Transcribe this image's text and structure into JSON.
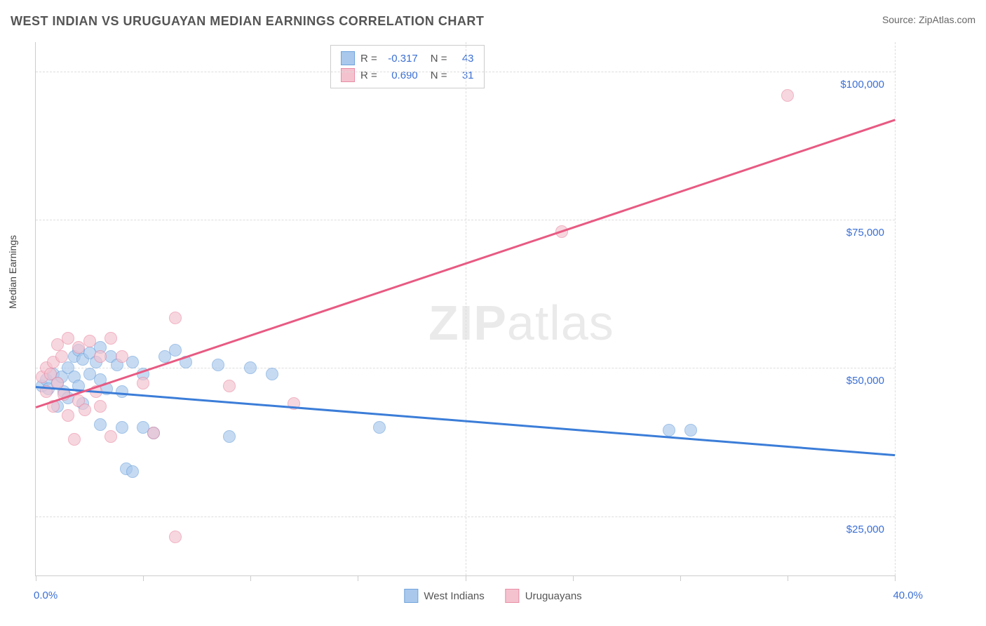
{
  "title": "WEST INDIAN VS URUGUAYAN MEDIAN EARNINGS CORRELATION CHART",
  "source_label": "Source: ",
  "source_value": "ZipAtlas.com",
  "watermark_a": "ZIP",
  "watermark_b": "atlas",
  "y_axis_label": "Median Earnings",
  "chart": {
    "type": "scatter",
    "xlim": [
      0,
      40
    ],
    "ylim": [
      15000,
      105000
    ],
    "x_ticks": [
      0,
      5,
      10,
      15,
      20,
      25,
      30,
      35,
      40
    ],
    "x_tick_labels_shown": {
      "0": "0.0%",
      "40": "40.0%"
    },
    "y_ticks": [
      25000,
      50000,
      75000,
      100000
    ],
    "y_tick_labels": {
      "25000": "$25,000",
      "50000": "$50,000",
      "75000": "$75,000",
      "100000": "$100,000"
    },
    "background_color": "#ffffff",
    "grid_color": "#dddddd",
    "axis_color": "#cccccc",
    "label_color": "#3b6fd4",
    "title_color": "#555555",
    "marker_radius": 8,
    "marker_opacity": 0.65,
    "line_width": 2.5
  },
  "series": [
    {
      "name": "West Indians",
      "color_fill": "#a9c8ec",
      "color_border": "#6fa3dc",
      "line_color": "#3b7dd8",
      "R": "-0.317",
      "N": "43",
      "trend": {
        "x1": 0,
        "y1": 47000,
        "x2": 40,
        "y2": 35500
      },
      "points": [
        [
          0.3,
          47000
        ],
        [
          0.5,
          48000
        ],
        [
          0.6,
          46500
        ],
        [
          0.8,
          49000
        ],
        [
          1.0,
          47500
        ],
        [
          1.0,
          43500
        ],
        [
          1.2,
          48500
        ],
        [
          1.3,
          46000
        ],
        [
          1.5,
          50000
        ],
        [
          1.5,
          45000
        ],
        [
          1.8,
          52000
        ],
        [
          1.8,
          48500
        ],
        [
          2.0,
          47000
        ],
        [
          2.0,
          53000
        ],
        [
          2.2,
          51500
        ],
        [
          2.2,
          44000
        ],
        [
          2.5,
          52500
        ],
        [
          2.5,
          49000
        ],
        [
          2.8,
          51000
        ],
        [
          3.0,
          48000
        ],
        [
          3.0,
          40500
        ],
        [
          3.0,
          53500
        ],
        [
          3.3,
          46500
        ],
        [
          3.5,
          52000
        ],
        [
          3.8,
          50500
        ],
        [
          4.0,
          46000
        ],
        [
          4.0,
          40000
        ],
        [
          4.2,
          33000
        ],
        [
          4.5,
          32500
        ],
        [
          4.5,
          51000
        ],
        [
          5.0,
          49000
        ],
        [
          5.0,
          40000
        ],
        [
          5.5,
          39000
        ],
        [
          6.0,
          52000
        ],
        [
          6.5,
          53000
        ],
        [
          7.0,
          51000
        ],
        [
          8.5,
          50500
        ],
        [
          9.0,
          38500
        ],
        [
          10.0,
          50000
        ],
        [
          11.0,
          49000
        ],
        [
          16.0,
          40000
        ],
        [
          29.5,
          39500
        ],
        [
          30.5,
          39500
        ]
      ]
    },
    {
      "name": "Uruguayans",
      "color_fill": "#f4c2cf",
      "color_border": "#e98ca5",
      "line_color": "#e85a82",
      "R": "0.690",
      "N": "31",
      "trend": {
        "x1": 0,
        "y1": 43500,
        "x2": 40,
        "y2": 92000
      },
      "points": [
        [
          0.3,
          48500
        ],
        [
          0.5,
          50000
        ],
        [
          0.5,
          46000
        ],
        [
          0.7,
          49000
        ],
        [
          0.8,
          51000
        ],
        [
          0.8,
          43500
        ],
        [
          1.0,
          54000
        ],
        [
          1.0,
          47500
        ],
        [
          1.2,
          52000
        ],
        [
          1.3,
          45500
        ],
        [
          1.5,
          55000
        ],
        [
          1.5,
          42000
        ],
        [
          1.8,
          38000
        ],
        [
          2.0,
          53500
        ],
        [
          2.0,
          44500
        ],
        [
          2.3,
          43000
        ],
        [
          2.5,
          54500
        ],
        [
          2.8,
          46000
        ],
        [
          3.0,
          52000
        ],
        [
          3.0,
          43500
        ],
        [
          3.5,
          38500
        ],
        [
          3.5,
          55000
        ],
        [
          4.0,
          52000
        ],
        [
          5.0,
          47500
        ],
        [
          5.5,
          39000
        ],
        [
          6.5,
          58500
        ],
        [
          6.5,
          21500
        ],
        [
          9.0,
          47000
        ],
        [
          12.0,
          44000
        ],
        [
          24.5,
          73000
        ],
        [
          35.0,
          96000
        ]
      ]
    }
  ],
  "stats_legend": {
    "R_label": "R =",
    "N_label": "N ="
  }
}
